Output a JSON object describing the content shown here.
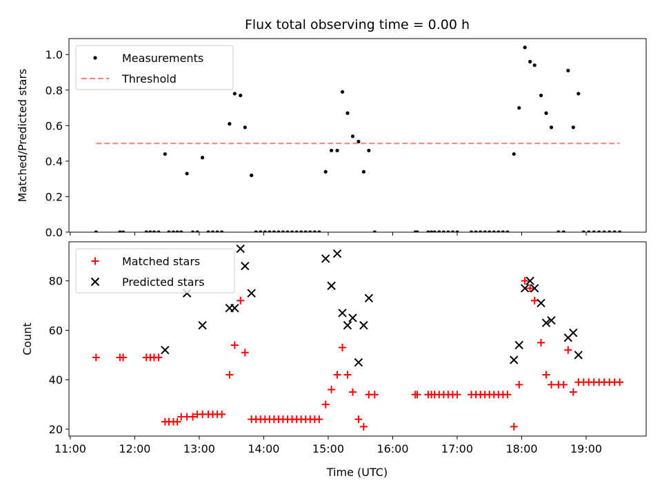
{
  "chart_data": {
    "title": "Flux total observing time = 0.00 h",
    "xlabel": "Time (UTC)",
    "x_unit": "hours UTC",
    "xlim": [
      10.98,
      19.93
    ],
    "x_ticks": [
      {
        "value": 11,
        "label": "11:00"
      },
      {
        "value": 12,
        "label": "12:00"
      },
      {
        "value": 13,
        "label": "13:00"
      },
      {
        "value": 14,
        "label": "14:00"
      },
      {
        "value": 15,
        "label": "15:00"
      },
      {
        "value": 16,
        "label": "16:00"
      },
      {
        "value": 17,
        "label": "17:00"
      },
      {
        "value": 18,
        "label": "18:00"
      },
      {
        "value": 19,
        "label": "19:00"
      }
    ],
    "panels": [
      {
        "type": "scatter",
        "ylabel": "Matched/Predicted stars",
        "ylim": [
          0,
          1.09
        ],
        "y_ticks": [
          0.0,
          0.2,
          0.4,
          0.6,
          0.8,
          1.0
        ],
        "y_tick_labels": [
          "0.0",
          "0.2",
          "0.4",
          "0.6",
          "0.8",
          "1.0"
        ],
        "legend_position": "upper-left",
        "series": [
          {
            "name": "Measurements",
            "kind": "points",
            "color": "#000000",
            "x": [
              11.4,
              11.77,
              11.82,
              12.18,
              12.24,
              12.3,
              12.37,
              12.47,
              12.53,
              12.6,
              12.66,
              12.72,
              12.81,
              12.9,
              12.97,
              13.05,
              13.14,
              13.21,
              13.28,
              13.35,
              13.47,
              13.55,
              13.64,
              13.71,
              13.81,
              13.88,
              13.95,
              14.02,
              14.09,
              14.16,
              14.23,
              14.3,
              14.37,
              14.44,
              14.51,
              14.58,
              14.65,
              14.72,
              14.79,
              14.86,
              14.96,
              15.05,
              15.14,
              15.22,
              15.3,
              15.38,
              15.47,
              15.55,
              15.63,
              15.72,
              16.35,
              16.38,
              16.55,
              16.6,
              16.65,
              16.72,
              16.79,
              16.86,
              16.93,
              17.0,
              17.22,
              17.29,
              17.36,
              17.43,
              17.5,
              17.57,
              17.64,
              17.71,
              17.78,
              17.88,
              17.96,
              18.05,
              18.13,
              18.2,
              18.3,
              18.38,
              18.46,
              18.57,
              18.65,
              18.72,
              18.8,
              18.88,
              18.96,
              19.04,
              19.12,
              19.2,
              19.28,
              19.36,
              19.44,
              19.52
            ],
            "y": [
              0.0,
              0.0,
              0.0,
              0.0,
              0.0,
              0.0,
              0.0,
              0.44,
              0.0,
              0.0,
              0.0,
              0.0,
              0.33,
              0.0,
              0.0,
              0.42,
              0.0,
              0.0,
              0.0,
              0.0,
              0.61,
              0.78,
              0.77,
              0.59,
              0.32,
              0.0,
              0.0,
              0.0,
              0.0,
              0.0,
              0.0,
              0.0,
              0.0,
              0.0,
              0.0,
              0.0,
              0.0,
              0.0,
              0.0,
              0.0,
              0.34,
              0.46,
              0.46,
              0.79,
              0.67,
              0.54,
              0.51,
              0.34,
              0.46,
              0.0,
              0.0,
              0.0,
              0.0,
              0.0,
              0.0,
              0.0,
              0.0,
              0.0,
              0.0,
              0.0,
              0.0,
              0.0,
              0.0,
              0.0,
              0.0,
              0.0,
              0.0,
              0.0,
              0.0,
              0.44,
              0.7,
              1.04,
              0.96,
              0.94,
              0.77,
              0.67,
              0.59,
              0.0,
              0.0,
              0.91,
              0.59,
              0.78,
              0.0,
              0.0,
              0.0,
              0.0,
              0.0,
              0.0,
              0.0,
              0.0
            ]
          },
          {
            "name": "Threshold",
            "kind": "dashed-line",
            "color": "#ff7f7f",
            "x": [
              11.4,
              19.52
            ],
            "y": [
              0.5,
              0.5
            ]
          }
        ]
      },
      {
        "type": "scatter",
        "ylabel": "Count",
        "ylim": [
          17.2,
          95.8
        ],
        "y_ticks": [
          20,
          40,
          60,
          80
        ],
        "y_tick_labels": [
          "20",
          "40",
          "60",
          "80"
        ],
        "legend_position": "upper-left",
        "series": [
          {
            "name": "Matched stars",
            "kind": "plus",
            "color": "#ff0000",
            "x": [
              11.4,
              11.77,
              11.82,
              12.18,
              12.24,
              12.3,
              12.37,
              12.47,
              12.53,
              12.6,
              12.66,
              12.72,
              12.81,
              12.9,
              12.97,
              13.05,
              13.14,
              13.21,
              13.28,
              13.35,
              13.47,
              13.55,
              13.64,
              13.71,
              13.81,
              13.88,
              13.95,
              14.02,
              14.09,
              14.16,
              14.23,
              14.3,
              14.37,
              14.44,
              14.51,
              14.58,
              14.65,
              14.72,
              14.79,
              14.86,
              14.96,
              15.05,
              15.14,
              15.22,
              15.3,
              15.38,
              15.47,
              15.55,
              15.63,
              15.72,
              16.35,
              16.38,
              16.55,
              16.6,
              16.65,
              16.72,
              16.79,
              16.86,
              16.93,
              17.0,
              17.22,
              17.29,
              17.36,
              17.43,
              17.5,
              17.57,
              17.64,
              17.71,
              17.78,
              17.88,
              17.96,
              18.05,
              18.13,
              18.2,
              18.3,
              18.38,
              18.46,
              18.57,
              18.65,
              18.72,
              18.8,
              18.88,
              18.96,
              19.04,
              19.12,
              19.2,
              19.28,
              19.36,
              19.44,
              19.52
            ],
            "y": [
              49,
              49,
              49,
              49,
              49,
              49,
              49,
              23,
              23,
              23,
              23,
              25,
              25,
              25,
              26,
              26,
              26,
              26,
              26,
              26,
              42,
              54,
              72,
              51,
              24,
              24,
              24,
              24,
              24,
              24,
              24,
              24,
              24,
              24,
              24,
              24,
              24,
              24,
              24,
              24,
              30,
              36,
              42,
              53,
              42,
              35,
              24,
              21,
              34,
              34,
              34,
              34,
              34,
              34,
              34,
              34,
              34,
              34,
              34,
              34,
              34,
              34,
              34,
              34,
              34,
              34,
              34,
              34,
              34,
              21,
              38,
              80,
              77,
              72,
              55,
              42,
              38,
              38,
              38,
              52,
              35,
              39,
              39,
              39,
              39,
              39,
              39,
              39,
              39,
              39
            ]
          },
          {
            "name": "Predicted stars",
            "kind": "cross",
            "color": "#000000",
            "x": [
              12.47,
              12.81,
              13.05,
              13.47,
              13.55,
              13.64,
              13.71,
              13.81,
              14.96,
              15.05,
              15.14,
              15.22,
              15.3,
              15.38,
              15.47,
              15.55,
              15.63,
              17.88,
              17.96,
              18.05,
              18.13,
              18.2,
              18.3,
              18.38,
              18.46,
              18.72,
              18.8,
              18.88
            ],
            "y": [
              52,
              75,
              62,
              69,
              69,
              93,
              86,
              75,
              89,
              78,
              91,
              67,
              62,
              65,
              47,
              62,
              73,
              48,
              54,
              77,
              80,
              77,
              71,
              63,
              64,
              57,
              59,
              50
            ]
          }
        ]
      }
    ]
  }
}
